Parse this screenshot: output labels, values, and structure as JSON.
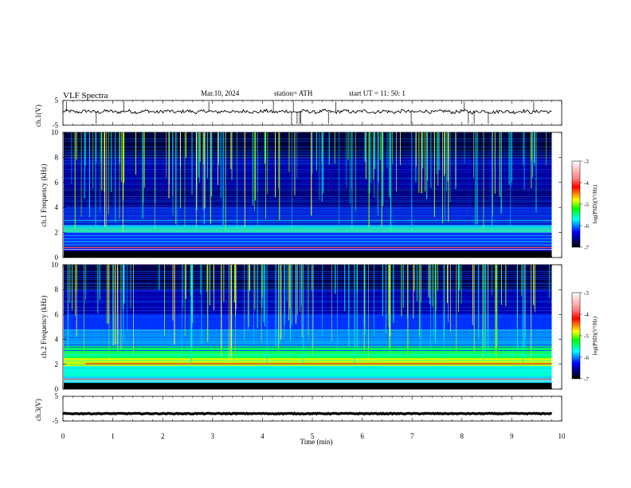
{
  "header": {
    "title": "VLF  Spectra",
    "date": "Mar.10, 2024",
    "station": "station= ATH",
    "start": "start  UT  =    11: 50: 1"
  },
  "colorbar": {
    "label": "log(PSD)(V²/Hz)",
    "ticks": [
      "-3",
      "-4",
      "-5",
      "-6",
      "-7"
    ],
    "colors": [
      "#ffffff",
      "#ff0000",
      "#ffff00",
      "#00ff00",
      "#00ffff",
      "#0000ff",
      "#000000"
    ]
  },
  "chart_data": [
    {
      "type": "line",
      "name": "ch1-waveform",
      "ylabel": "ch.1(V)",
      "ylim": [
        -5,
        5
      ],
      "yticks": [
        "5",
        "-5"
      ],
      "x_range": [
        0,
        9.8
      ],
      "baseline_level": 0.5
    },
    {
      "type": "heatmap",
      "name": "ch1-spectrogram",
      "ylabel": "ch.1 Frequency  (kHz)",
      "ylim": [
        0,
        10
      ],
      "yticks": [
        "0",
        "2",
        "4",
        "6",
        "8",
        "10"
      ],
      "xlim": [
        0,
        10
      ]
    },
    {
      "type": "heatmap",
      "name": "ch2-spectrogram",
      "ylabel": "ch.2 Frequency  (kHz)",
      "ylim": [
        0,
        10
      ],
      "yticks": [
        "0",
        "2",
        "4",
        "6",
        "8",
        "10"
      ],
      "xlim": [
        0,
        10
      ]
    },
    {
      "type": "line",
      "name": "ch3-waveform",
      "ylabel": "ch.3(V)",
      "ylim": [
        -5,
        5
      ],
      "yticks": [
        "5",
        "-5"
      ],
      "x_range": [
        0,
        9.8
      ],
      "baseline_level": -2,
      "xlabel": "Time  (min)",
      "xticks": [
        "0",
        "1",
        "2",
        "3",
        "4",
        "5",
        "6",
        "7",
        "8",
        "9",
        "10"
      ],
      "xlim": [
        0,
        10
      ]
    }
  ]
}
